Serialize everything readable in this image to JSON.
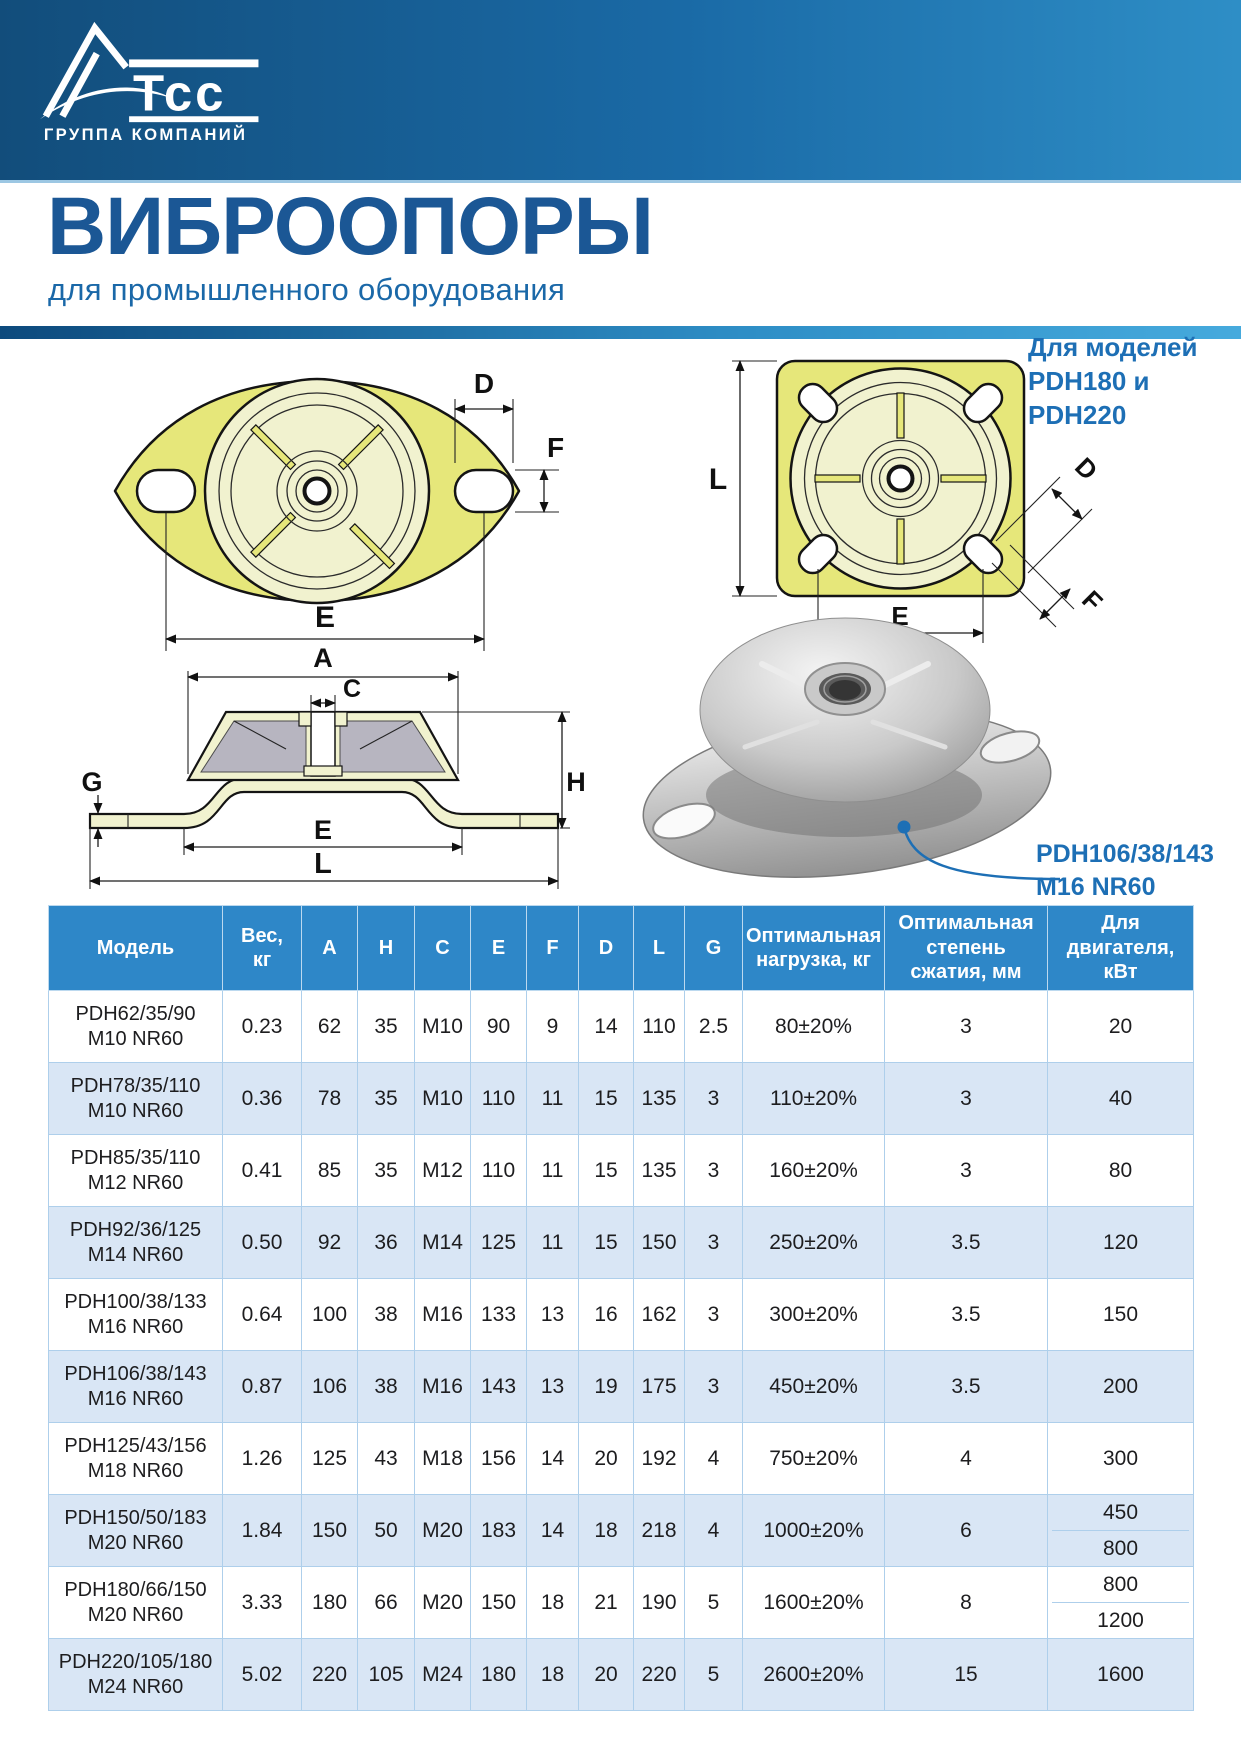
{
  "logo": {
    "brand": "Тсс",
    "tagline": "ГРУППА КОМПАНИЙ"
  },
  "title": {
    "main": "ВИБРООПОРЫ",
    "subtitle": "для промышленного оборудования"
  },
  "drawings": {
    "square_note": "Для моделей\nPDH180 и PDH220",
    "photo_callout": "PDH106/38/143\nM16 NR60",
    "oval": {
      "d": "D",
      "f": "F",
      "e": "E"
    },
    "square": {
      "l": "L",
      "e": "E",
      "d": "D",
      "f": "F"
    },
    "section": {
      "a": "A",
      "c": "C",
      "h": "H",
      "g": "G",
      "e": "E",
      "l": "L"
    }
  },
  "table": {
    "headers": [
      "Модель",
      "Вес,\nкг",
      "A",
      "H",
      "C",
      "E",
      "F",
      "D",
      "L",
      "G",
      "Оптимальная\nнагрузка, кг",
      "Оптимальная\nстепень\nсжатия, мм",
      "Для двигателя,\nкВт"
    ],
    "rows": [
      {
        "model": "PDH62/35/90\nM10 NR60",
        "values": [
          "0.23",
          "62",
          "35",
          "M10",
          "90",
          "9",
          "14",
          "110",
          "2.5",
          "80±20%",
          "3"
        ],
        "power": [
          "20"
        ]
      },
      {
        "model": "PDH78/35/110\nM10 NR60",
        "values": [
          "0.36",
          "78",
          "35",
          "M10",
          "110",
          "11",
          "15",
          "135",
          "3",
          "110±20%",
          "3"
        ],
        "power": [
          "40"
        ]
      },
      {
        "model": "PDH85/35/110\nM12 NR60",
        "values": [
          "0.41",
          "85",
          "35",
          "M12",
          "110",
          "11",
          "15",
          "135",
          "3",
          "160±20%",
          "3"
        ],
        "power": [
          "80"
        ]
      },
      {
        "model": "PDH92/36/125\nM14 NR60",
        "values": [
          "0.50",
          "92",
          "36",
          "M14",
          "125",
          "11",
          "15",
          "150",
          "3",
          "250±20%",
          "3.5"
        ],
        "power": [
          "120"
        ]
      },
      {
        "model": "PDH100/38/133\nM16 NR60",
        "values": [
          "0.64",
          "100",
          "38",
          "M16",
          "133",
          "13",
          "16",
          "162",
          "3",
          "300±20%",
          "3.5"
        ],
        "power": [
          "150"
        ]
      },
      {
        "model": "PDH106/38/143\nM16 NR60",
        "values": [
          "0.87",
          "106",
          "38",
          "M16",
          "143",
          "13",
          "19",
          "175",
          "3",
          "450±20%",
          "3.5"
        ],
        "power": [
          "200"
        ]
      },
      {
        "model": "PDH125/43/156\nM18 NR60",
        "values": [
          "1.26",
          "125",
          "43",
          "M18",
          "156",
          "14",
          "20",
          "192",
          "4",
          "750±20%",
          "4"
        ],
        "power": [
          "300"
        ]
      },
      {
        "model": "PDH150/50/183\nM20 NR60",
        "values": [
          "1.84",
          "150",
          "50",
          "M20",
          "183",
          "14",
          "18",
          "218",
          "4",
          "1000±20%",
          "6"
        ],
        "power": [
          "450",
          "800"
        ]
      },
      {
        "model": "PDH180/66/150\nM20 NR60",
        "values": [
          "3.33",
          "180",
          "66",
          "M20",
          "150",
          "18",
          "21",
          "190",
          "5",
          "1600±20%",
          "8"
        ],
        "power": [
          "800",
          "1200"
        ]
      },
      {
        "model": "PDH220/105/180\nM24 NR60",
        "values": [
          "5.02",
          "220",
          "105",
          "M24",
          "180",
          "18",
          "20",
          "220",
          "5",
          "2600±20%",
          "15"
        ],
        "power": [
          "1600"
        ]
      }
    ]
  },
  "colors": {
    "accent": "#1d6fb5",
    "banner_left": "#124d7b",
    "banner_right": "#2e8ec6",
    "title_color": "#1b5795",
    "table_header_bg": "#2e87c8",
    "row_alt": "#d9e6f5",
    "table_border": "#aecfeb",
    "drawing_yellow": "#e6e77a",
    "drawing_pale": "#f1f2cf"
  }
}
